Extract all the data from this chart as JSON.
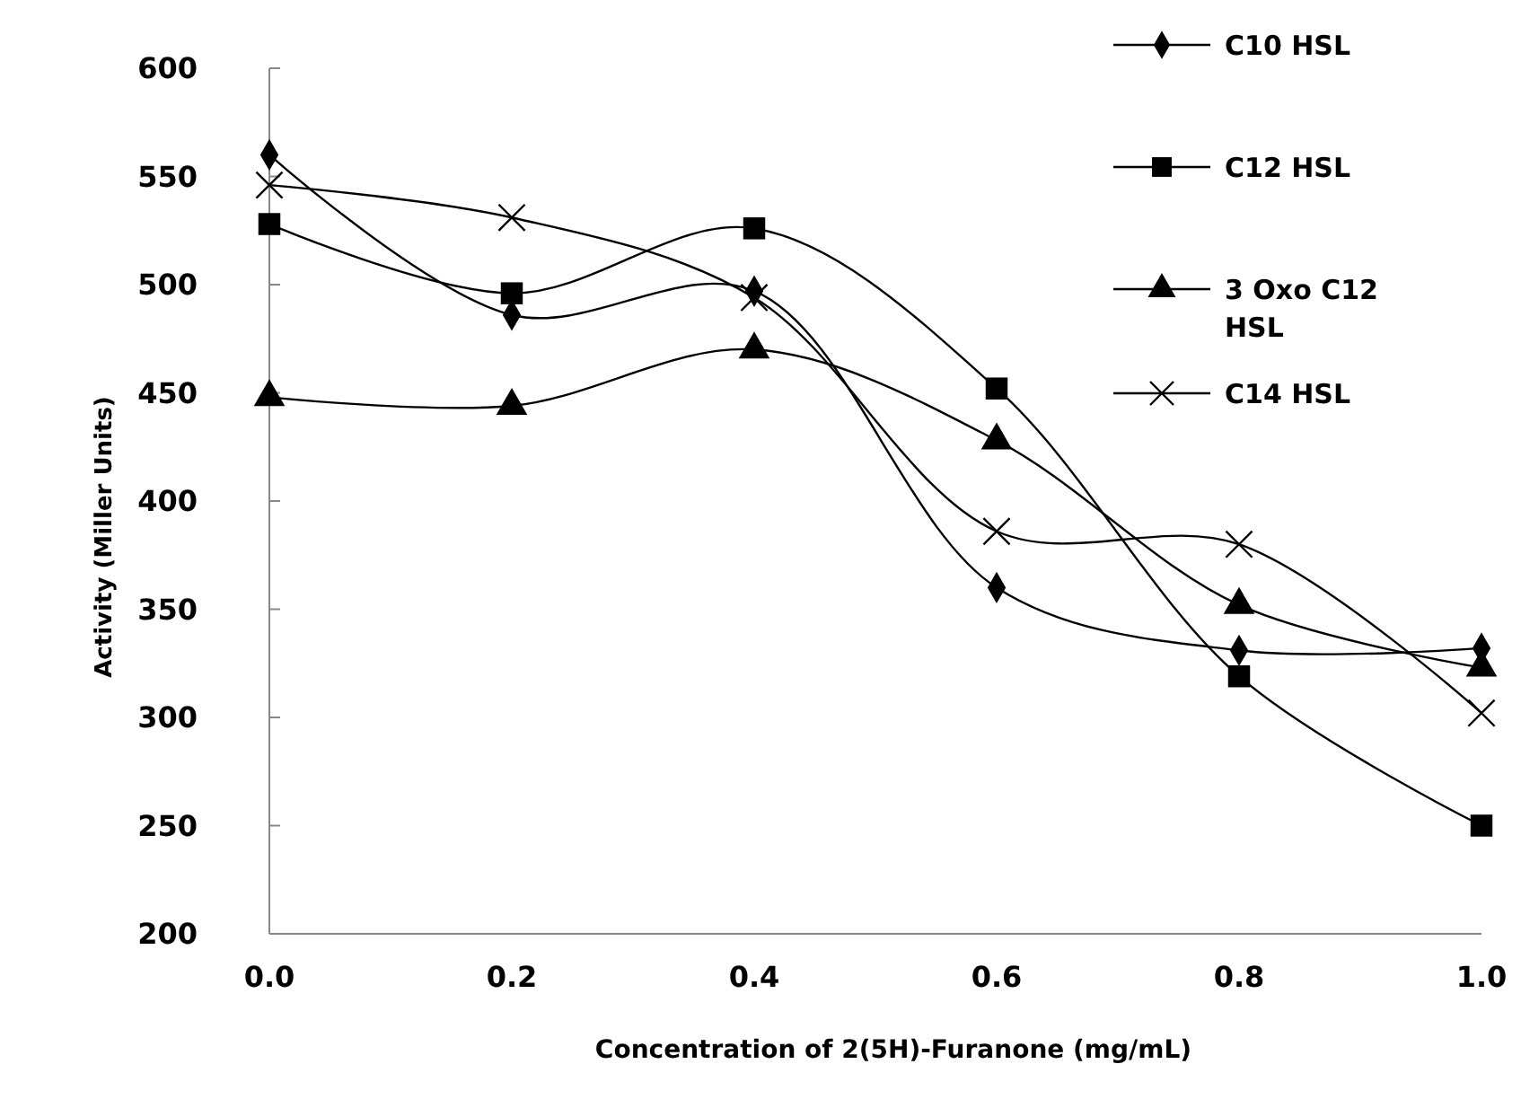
{
  "chart_data": {
    "type": "line",
    "xlabel": "Concentration of 2(5H)-Furanone  (mg/mL)",
    "ylabel": "Activity (Miller  Units)",
    "x": [
      0,
      0.2,
      0.4,
      0.6,
      0.8,
      1.0
    ],
    "xlim": [
      0,
      1
    ],
    "xticks": [
      {
        "value": 0,
        "label": "0.0"
      },
      {
        "value": 0.2,
        "label": "0.2"
      },
      {
        "value": 0.4,
        "label": "0.4"
      },
      {
        "value": 0.6,
        "label": "0.6"
      },
      {
        "value": 0.8,
        "label": "0.8"
      },
      {
        "value": 1,
        "label": "1.0"
      }
    ],
    "ylim": [
      200,
      600
    ],
    "yticks": [
      200,
      250,
      300,
      350,
      400,
      450,
      500,
      550,
      600
    ],
    "grid": false,
    "legend": "top right",
    "line_style": "solid",
    "series": [
      {
        "name": "C10 HSL",
        "color": "#000000",
        "marker": "diamond",
        "values": [
          560,
          486,
          497,
          360,
          331,
          332
        ]
      },
      {
        "name": "C12 HSL",
        "color": "#000000",
        "marker": "square",
        "values": [
          528,
          496,
          526,
          452,
          319,
          250
        ]
      },
      {
        "name": "3 Oxo C12 HSL",
        "color": "#000000",
        "marker": "triangle",
        "values": [
          448,
          444,
          470,
          428,
          352,
          323
        ]
      },
      {
        "name": "C14 HSL",
        "color": "#000000",
        "marker": "cross",
        "values": [
          546,
          531,
          494,
          386,
          380,
          302
        ]
      }
    ]
  }
}
